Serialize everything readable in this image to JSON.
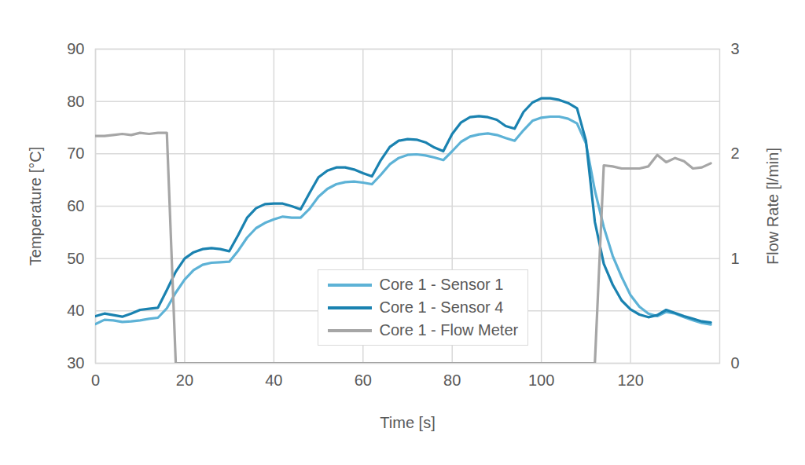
{
  "chart_data": {
    "type": "line",
    "xlabel": "Time [s]",
    "ylabel": "Temperature [°C]",
    "y2label": "Flow Rate [l/min]",
    "xlim": [
      0,
      140
    ],
    "xticks": [
      0,
      20,
      40,
      60,
      80,
      100,
      120
    ],
    "ylim": [
      30,
      90
    ],
    "yticks": [
      30,
      40,
      50,
      60,
      70,
      80,
      90
    ],
    "y2lim": [
      0,
      3
    ],
    "y2ticks": [
      0,
      1,
      2,
      3
    ],
    "grid": true,
    "legend": "lower center",
    "x": [
      0,
      2,
      4,
      6,
      8,
      10,
      12,
      14,
      16,
      18,
      20,
      22,
      24,
      26,
      28,
      30,
      32,
      34,
      36,
      38,
      40,
      42,
      44,
      46,
      48,
      50,
      52,
      54,
      56,
      58,
      60,
      62,
      64,
      66,
      68,
      70,
      72,
      74,
      76,
      78,
      80,
      82,
      84,
      86,
      88,
      90,
      92,
      94,
      96,
      98,
      100,
      102,
      104,
      106,
      108,
      110,
      112,
      114,
      116,
      118,
      120,
      122,
      124,
      126,
      128,
      130,
      132,
      134,
      136,
      138
    ],
    "series": [
      {
        "name": "Core 1 - Sensor 1",
        "color": "#5db2d6",
        "values": [
          37.5,
          38.3,
          38.2,
          37.9,
          38.0,
          38.2,
          38.5,
          38.7,
          40.5,
          43.5,
          46.0,
          47.8,
          48.8,
          49.2,
          49.3,
          49.4,
          51.5,
          54.0,
          55.8,
          56.8,
          57.5,
          58.0,
          57.8,
          57.8,
          59.5,
          61.8,
          63.3,
          64.2,
          64.6,
          64.7,
          64.5,
          64.2,
          66.0,
          68.0,
          69.2,
          69.8,
          69.9,
          69.7,
          69.3,
          68.8,
          70.5,
          72.3,
          73.3,
          73.7,
          73.9,
          73.6,
          73.0,
          72.5,
          74.5,
          76.3,
          76.9,
          77.1,
          77.1,
          76.7,
          75.8,
          72.0,
          63.0,
          56.0,
          50.5,
          46.5,
          43.0,
          40.8,
          39.5,
          39.0,
          39.8,
          39.5,
          38.8,
          38.2,
          37.7,
          37.4
        ]
      },
      {
        "name": "Core 1 - Sensor 4",
        "color": "#1a82b0",
        "values": [
          39.0,
          39.5,
          39.2,
          38.9,
          39.5,
          40.2,
          40.4,
          40.6,
          44.0,
          47.5,
          50.0,
          51.2,
          51.8,
          52.0,
          51.8,
          51.4,
          54.5,
          57.8,
          59.6,
          60.4,
          60.5,
          60.5,
          60.0,
          59.4,
          62.5,
          65.5,
          66.8,
          67.4,
          67.4,
          67.0,
          66.3,
          65.7,
          68.8,
          71.3,
          72.5,
          72.8,
          72.7,
          72.2,
          71.2,
          70.5,
          73.8,
          76.0,
          77.0,
          77.2,
          77.0,
          76.5,
          75.3,
          74.8,
          78.0,
          79.8,
          80.6,
          80.6,
          80.3,
          79.7,
          78.7,
          72.5,
          57.0,
          49.0,
          45.0,
          42.0,
          40.3,
          39.3,
          38.8,
          39.2,
          40.2,
          39.6,
          39.0,
          38.5,
          38.0,
          37.8
        ]
      },
      {
        "name": "Core 1 - Flow Meter",
        "color": "#a6a6a6",
        "axis": "y2",
        "values": [
          2.17,
          2.17,
          2.18,
          2.19,
          2.18,
          2.2,
          2.19,
          2.2,
          2.2,
          0,
          0,
          0,
          0,
          0,
          0,
          0,
          0,
          0,
          0,
          0,
          0,
          0,
          0,
          0,
          0,
          0,
          0,
          0,
          0,
          0,
          0,
          0,
          0,
          0,
          0,
          0,
          0,
          0,
          0,
          0,
          0,
          0,
          0,
          0,
          0,
          0,
          0,
          0,
          0,
          0,
          0,
          0,
          0,
          0,
          0,
          0,
          0,
          1.89,
          1.88,
          1.86,
          1.86,
          1.86,
          1.88,
          1.99,
          1.92,
          1.96,
          1.93,
          1.86,
          1.87,
          1.91
        ]
      }
    ]
  }
}
